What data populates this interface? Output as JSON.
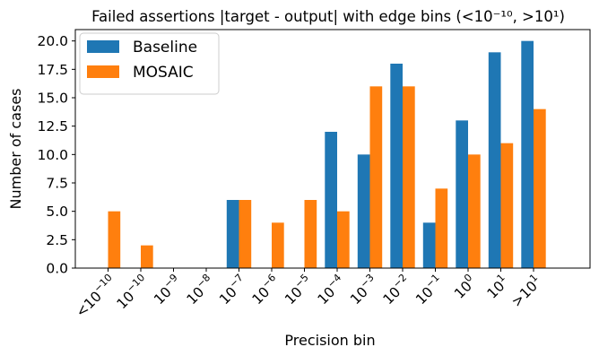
{
  "chart_data": {
    "type": "bar",
    "title": "Failed assertions |target - output| with edge bins (<10⁻¹⁰, >10¹)",
    "xlabel": "Precision bin",
    "ylabel": "Number of cases",
    "ylim": [
      0,
      21
    ],
    "yticks": [
      "0.0",
      "2.5",
      "5.0",
      "7.5",
      "10.0",
      "12.5",
      "15.0",
      "17.5",
      "20.0"
    ],
    "ytick_values": [
      0,
      2.5,
      5,
      7.5,
      10,
      12.5,
      15,
      17.5,
      20
    ],
    "categories": [
      {
        "prefix": "<10",
        "exp": "−10"
      },
      {
        "prefix": "10",
        "exp": "−10"
      },
      {
        "prefix": "10",
        "exp": "−9"
      },
      {
        "prefix": "10",
        "exp": "−8"
      },
      {
        "prefix": "10",
        "exp": "−7"
      },
      {
        "prefix": "10",
        "exp": "−6"
      },
      {
        "prefix": "10",
        "exp": "−5"
      },
      {
        "prefix": "10",
        "exp": "−4"
      },
      {
        "prefix": "10",
        "exp": "−3"
      },
      {
        "prefix": "10",
        "exp": "−2"
      },
      {
        "prefix": "10",
        "exp": "−1"
      },
      {
        "prefix": "10",
        "exp": "0"
      },
      {
        "prefix": "10",
        "exp": "1"
      },
      {
        "prefix": ">10",
        "exp": "1"
      }
    ],
    "series": [
      {
        "name": "Baseline",
        "color": "#1f77b4",
        "values": [
          0,
          0,
          0,
          0,
          6,
          0,
          0,
          12,
          10,
          18,
          4,
          13,
          19,
          20
        ]
      },
      {
        "name": "MOSAIC",
        "color": "#ff7f0e",
        "values": [
          5,
          2,
          0,
          0,
          6,
          4,
          6,
          5,
          16,
          16,
          7,
          10,
          11,
          14
        ]
      }
    ],
    "legend_position": "top-left",
    "grid": false
  }
}
